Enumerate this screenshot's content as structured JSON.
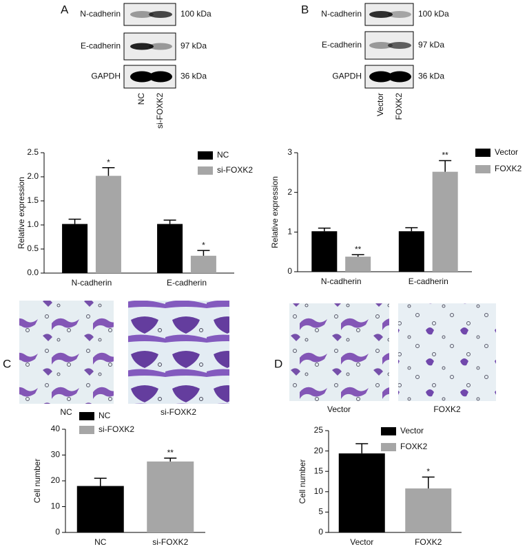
{
  "panel_labels": [
    "A",
    "B",
    "C",
    "D"
  ],
  "blots": [
    {
      "rows": [
        {
          "protein": "N-cadherin",
          "size": "100 kDa"
        },
        {
          "protein": "E-cadherin",
          "size": "97 kDa"
        },
        {
          "protein": "GAPDH",
          "size": "36 kDa"
        }
      ],
      "lanes": [
        "NC",
        "si-FOXK2"
      ]
    },
    {
      "rows": [
        {
          "protein": "N-cadherin",
          "size": "100 kDa"
        },
        {
          "protein": "E-cadherin",
          "size": "97 kDa"
        },
        {
          "protein": "GAPDH",
          "size": "36 kDa"
        }
      ],
      "lanes": [
        "Vector",
        "FOXK2"
      ]
    }
  ],
  "images": [
    {
      "caption": "NC"
    },
    {
      "caption": "si-FOXK2"
    },
    {
      "caption": "Vector"
    },
    {
      "caption": "FOXK2"
    }
  ],
  "chart_data": [
    {
      "type": "bar",
      "y_label": "Relative expression",
      "categories": [
        "N-cadherin",
        "E-cadherin"
      ],
      "series": [
        {
          "name": "NC",
          "color": "#000000",
          "values": [
            1.02,
            1.02
          ],
          "errors": [
            0.1,
            0.08
          ]
        },
        {
          "name": "si-FOXK2",
          "color": "#a6a6a6",
          "values": [
            2.02,
            0.36
          ],
          "errors": [
            0.17,
            0.11
          ],
          "annotations": [
            "*",
            "*"
          ]
        }
      ],
      "ylim": [
        0,
        2.5
      ],
      "yticks": [
        {
          "value": 0,
          "label": "0.0"
        },
        0.5,
        {
          "value": 1,
          "label": "1.0"
        },
        1.5,
        {
          "value": 2,
          "label": "2.0"
        },
        2.5
      ],
      "grid": false
    },
    {
      "type": "bar",
      "y_label": "Relative expression",
      "categories": [
        "N-cadherin",
        "E-cadherin"
      ],
      "series": [
        {
          "name": "Vector",
          "color": "#000000",
          "values": [
            1.02,
            1.02
          ],
          "errors": [
            0.08,
            0.09
          ]
        },
        {
          "name": "FOXK2",
          "color": "#a6a6a6",
          "values": [
            0.38,
            2.52
          ],
          "errors": [
            0.05,
            0.28
          ],
          "annotations": [
            "**",
            "**"
          ]
        }
      ],
      "ylim": [
        0,
        3
      ],
      "yticks": [
        0,
        1,
        2,
        3
      ],
      "grid": false
    },
    {
      "type": "bar",
      "y_label": "Cell number",
      "categories": [
        "NC",
        "si-FOXK2"
      ],
      "values": [
        18,
        27.5
      ],
      "errors": [
        3,
        1.3
      ],
      "colors": [
        "#000000",
        "#a6a6a6"
      ],
      "annotations": [
        null,
        "**"
      ],
      "ylim": [
        0,
        40
      ],
      "yticks": [
        0,
        10,
        20,
        30,
        40
      ],
      "grid": false
    },
    {
      "type": "bar",
      "y_label": "Cell number",
      "categories": [
        "Vector",
        "FOXK2"
      ],
      "values": [
        19.4,
        10.8
      ],
      "errors": [
        2.4,
        2.8
      ],
      "colors": [
        "#000000",
        "#a6a6a6"
      ],
      "annotations": [
        null,
        "*"
      ],
      "ylim": [
        0,
        25
      ],
      "yticks": [
        0,
        5,
        10,
        15,
        20,
        25
      ],
      "grid": false
    }
  ]
}
